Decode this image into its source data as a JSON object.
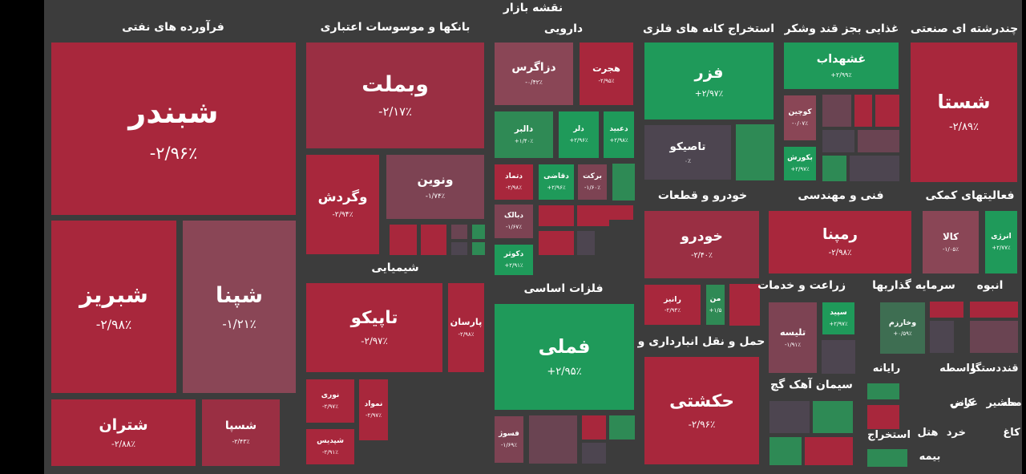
{
  "chart_data": {
    "type": "treemap",
    "title": "نقشه بازار",
    "groups": [
      {
        "name": "فرآورده های نفتی",
        "tiles": [
          {
            "name": "شبندر",
            "value": -2.96,
            "value_label": "-۲/۹۶٪"
          },
          {
            "name": "شبریز",
            "value": -2.98,
            "value_label": "-۲/۹۸٪"
          },
          {
            "name": "شپنا",
            "value": -1.21,
            "value_label": "-۱/۲۱٪"
          },
          {
            "name": "شتران",
            "value": -2.88,
            "value_label": "-۲/۸۸٪"
          },
          {
            "name": "شسپا",
            "value": -2.43,
            "value_label": "-۲/۴۳٪"
          }
        ]
      },
      {
        "name": "بانکها و موسوسات اعتباری",
        "tiles": [
          {
            "name": "وبملت",
            "value": -2.17,
            "value_label": "-۲/۱۷٪"
          },
          {
            "name": "وگردش",
            "value": -2.94,
            "value_label": "-۲/۹۴٪"
          },
          {
            "name": "ونوین",
            "value": -1.74,
            "value_label": "-۱/۷۴٪"
          }
        ]
      },
      {
        "name": "شیمیایی",
        "tiles": [
          {
            "name": "تاپیکو",
            "value": -2.97,
            "value_label": "-۲/۹۷٪"
          },
          {
            "name": "پارسان",
            "value": -2.98,
            "value_label": "-۲/۹۸٪"
          },
          {
            "name": "نوری",
            "value": -2.97,
            "value_label": "-۲/۹۷٪"
          },
          {
            "name": "نمواد",
            "value": -2.97,
            "value_label": "-۲/۹۷٪"
          },
          {
            "name": "شپدیس",
            "value": -2.91,
            "value_label": "-۲/۹۱٪"
          }
        ]
      },
      {
        "name": "دارویی",
        "tiles": [
          {
            "name": "دزاگرس",
            "value": -0.42,
            "value_label": "-۰/۴۲٪"
          },
          {
            "name": "هجرت",
            "value": -2.95,
            "value_label": "-۲/۹۵٪"
          },
          {
            "name": "دالبر",
            "value": 1.4,
            "value_label": "+۱/۴۰٪"
          },
          {
            "name": "دلر",
            "value": 2.96,
            "value_label": "+۲/۹۶٪"
          },
          {
            "name": "دعبید",
            "value": 2.98,
            "value_label": "+۲/۹۸٪"
          },
          {
            "name": "دتماد",
            "value": -2.98,
            "value_label": "-۲/۹۸٪"
          },
          {
            "name": "دقاضی",
            "value": 2.96,
            "value_label": "+۲/۹۶٪"
          },
          {
            "name": "برکت",
            "value": -1.6,
            "value_label": "-۱/۶۰٪"
          },
          {
            "name": "دبالک",
            "value": -1.67,
            "value_label": "-۱/۶۷٪"
          },
          {
            "name": "دکوثر",
            "value": 2.91,
            "value_label": "+۲/۹۱٪"
          }
        ]
      },
      {
        "name": "فلزات اساسی",
        "tiles": [
          {
            "name": "فملی",
            "value": 2.95,
            "value_label": "+۲/۹۵٪"
          },
          {
            "name": "فسوژ",
            "value": -1.69,
            "value_label": "-۱/۶۹٪"
          }
        ]
      },
      {
        "name": "استخراج کانه های فلزی",
        "tiles": [
          {
            "name": "فزر",
            "value": 2.97,
            "value_label": "+۲/۹۷٪"
          },
          {
            "name": "تاصیکو",
            "value": 0,
            "value_label": "۰٪"
          }
        ]
      },
      {
        "name": "خودرو و قطعات",
        "tiles": [
          {
            "name": "خودرو",
            "value": -2.4,
            "value_label": "-۲/۴۰٪"
          },
          {
            "name": "رانیز",
            "value": -2.94,
            "value_label": "-۲/۹۴٪"
          },
          {
            "name": "من",
            "value": 1.5,
            "value_label": "+۱/۵"
          }
        ]
      },
      {
        "name": "حمل و نقل انبارداری و",
        "tiles": [
          {
            "name": "حکشتی",
            "value": -2.96,
            "value_label": "-۲/۹۶٪"
          }
        ]
      },
      {
        "name": "غذایی بجز قند وشکر",
        "tiles": [
          {
            "name": "غشهداب",
            "value": 2.99,
            "value_label": "+۲/۹۹٪"
          },
          {
            "name": "کوچین",
            "value": -0.07,
            "value_label": "-۰/۰۷٪"
          },
          {
            "name": "بکورش",
            "value": 2.97,
            "value_label": "+۲/۹۷٪"
          }
        ]
      },
      {
        "name": "چندرشته ای صنعتی",
        "tiles": [
          {
            "name": "شستا",
            "value": -2.89,
            "value_label": "-۲/۸۹٪"
          }
        ]
      },
      {
        "name": "فنی و مهندسی",
        "tiles": [
          {
            "name": "رمپنا",
            "value": -2.98,
            "value_label": "-۲/۹۸٪"
          }
        ]
      },
      {
        "name": "فعالیتهای کمکی",
        "tiles": [
          {
            "name": "کالا",
            "value": -1.05,
            "value_label": "-۱/۰۵٪"
          },
          {
            "name": "انرژی",
            "value": 2.77,
            "value_label": "+۲/۷۷٪"
          }
        ]
      },
      {
        "name": "زراعت و خدمات",
        "tiles": [
          {
            "name": "تلیسه",
            "value": -1.91,
            "value_label": "-۱/۹۱٪"
          },
          {
            "name": "سپید",
            "value": 2.97,
            "value_label": "+۲/۹۷٪"
          }
        ]
      },
      {
        "name": "سرمایه گذاریها",
        "tiles": [
          {
            "name": "وخارزم",
            "value": 0.59,
            "value_label": "+۰/۵۹٪"
          }
        ]
      },
      {
        "name": "انبوه",
        "tiles": []
      },
      {
        "name": "سیمان آهک گچ",
        "tiles": []
      },
      {
        "name": "رایانه",
        "tiles": []
      },
      {
        "name": "واسطه",
        "tiles": []
      },
      {
        "name": "دستگا",
        "tiles": []
      },
      {
        "name": "قند",
        "tiles": []
      },
      {
        "name": "ماشیر",
        "tiles": []
      },
      {
        "name": "کانی",
        "tiles": []
      },
      {
        "name": "عرض",
        "tiles": []
      },
      {
        "name": "محه",
        "tiles": []
      },
      {
        "name": "هتل",
        "tiles": []
      },
      {
        "name": "خرد",
        "tiles": []
      },
      {
        "name": "کاغ",
        "tiles": []
      },
      {
        "name": "استخراج",
        "tiles": []
      },
      {
        "name": "بیمه",
        "tiles": []
      }
    ]
  }
}
